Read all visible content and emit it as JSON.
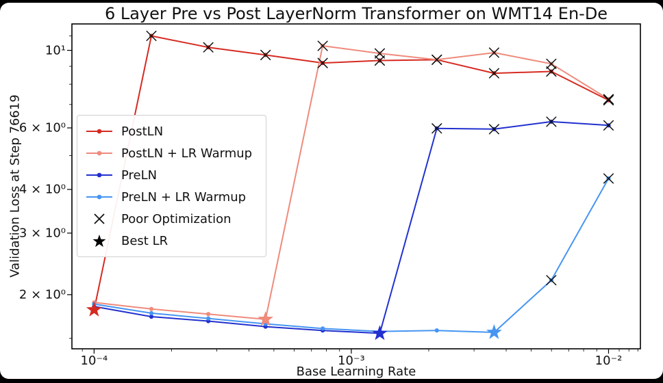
{
  "figure": {
    "background_color": "#000000",
    "panel_color": "#ffffff"
  },
  "chart_data": {
    "type": "line",
    "title": "6 Layer Pre vs Post LayerNorm Transformer on WMT14 En-De",
    "xlabel": "Base Learning Rate",
    "ylabel": "Validation Loss at Step 76619",
    "x_scale": "log",
    "y_scale": "log",
    "x_lim": [
      8.2e-05,
      0.0133
    ],
    "y_lim": [
      1.4,
      11.9
    ],
    "grid": false,
    "legend_position": "center-left",
    "x_ticks": [
      {
        "value": 0.0001,
        "label": "10⁻⁴"
      },
      {
        "value": 0.001,
        "label": "10⁻³"
      },
      {
        "value": 0.01,
        "label": "10⁻²"
      }
    ],
    "y_ticks": [
      {
        "value": 10,
        "label": "10¹"
      },
      {
        "value": 6,
        "label": "6 × 10⁰"
      },
      {
        "value": 4,
        "label": "4 × 10⁰"
      },
      {
        "value": 3,
        "label": "3 × 10⁰"
      },
      {
        "value": 2,
        "label": "2 × 10⁰"
      }
    ],
    "x_minor_ticks": [
      9e-05,
      0.0002,
      0.0003,
      0.0004,
      0.0005,
      0.0006,
      0.0007,
      0.0008,
      0.0009,
      0.002,
      0.003,
      0.004,
      0.005,
      0.006,
      0.007,
      0.008,
      0.009,
      0.011,
      0.012,
      0.013
    ],
    "y_minor_ticks": [
      1.5,
      5,
      7,
      8,
      9,
      11
    ],
    "x": [
      0.0001,
      0.000167,
      0.000278,
      0.000464,
      0.000774,
      0.00129,
      0.00215,
      0.00359,
      0.00599,
      0.01
    ],
    "series": [
      {
        "name": "PostLN",
        "color": "#d62a21",
        "values": [
          1.81,
          11.0,
          10.2,
          9.7,
          9.2,
          9.35,
          9.4,
          8.6,
          8.7,
          7.2
        ],
        "poor": [
          1,
          2,
          3,
          4,
          5,
          6,
          7,
          8,
          9
        ],
        "best": 0
      },
      {
        "name": "PostLN + LR Warmup",
        "color": "#ef8a7c",
        "values": [
          1.9,
          1.82,
          1.76,
          1.7,
          10.3,
          9.8,
          9.4,
          9.85,
          9.15,
          7.25
        ],
        "poor": [
          4,
          5,
          6,
          7,
          8,
          9
        ],
        "best": 3
      },
      {
        "name": "PreLN",
        "color": "#2130cf",
        "values": [
          1.85,
          1.73,
          1.68,
          1.62,
          1.58,
          1.55,
          5.98,
          5.95,
          6.25,
          6.1
        ],
        "poor": [
          6,
          7,
          8,
          9
        ],
        "best": 5
      },
      {
        "name": "PreLN + LR Warmup",
        "color": "#4595f2",
        "values": [
          1.88,
          1.77,
          1.71,
          1.65,
          1.6,
          1.57,
          1.58,
          1.56,
          2.2,
          4.3
        ],
        "poor": [
          8,
          9
        ],
        "best": 7
      }
    ],
    "marker_legend": [
      {
        "label": "Poor Optimization",
        "marker": "x",
        "color": "#111111"
      },
      {
        "label": "Best LR",
        "marker": "star",
        "color": "#000000"
      }
    ]
  }
}
